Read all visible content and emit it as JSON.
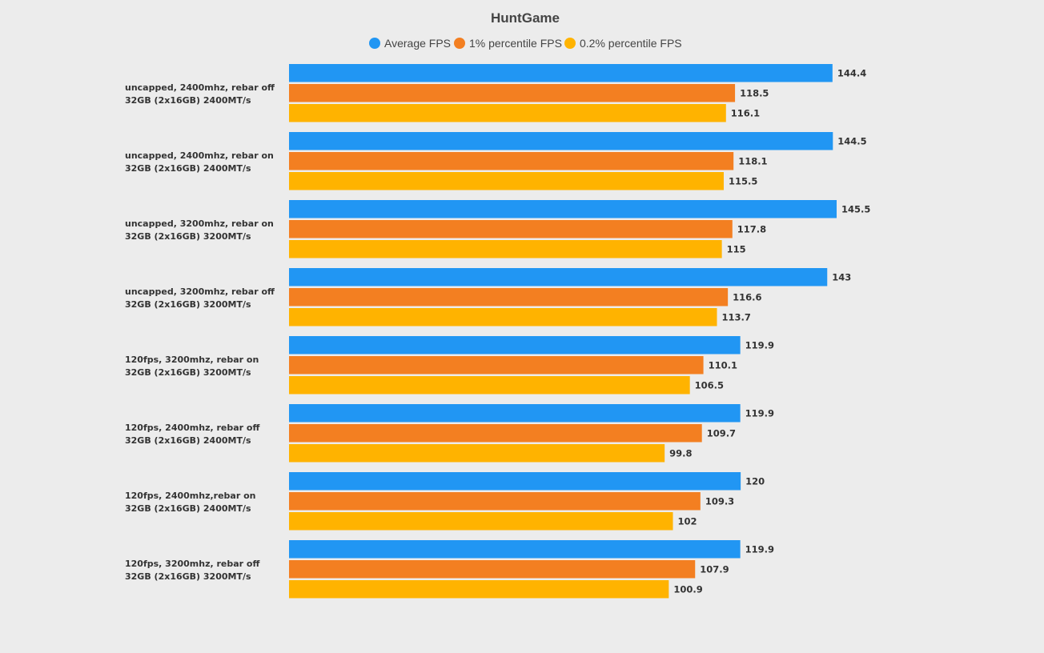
{
  "chart_data": {
    "type": "bar",
    "orientation": "horizontal",
    "title": "HuntGame",
    "xlabel": "",
    "ylabel": "",
    "xlim": [
      0,
      145.5
    ],
    "grid": false,
    "legend_position": "top-center",
    "categories": [
      [
        "uncapped, 2400mhz, rebar off",
        "32GB (2x16GB) 2400MT/s"
      ],
      [
        "uncapped, 2400mhz, rebar on",
        "32GB (2x16GB) 2400MT/s"
      ],
      [
        "uncapped, 3200mhz, rebar on",
        "32GB (2x16GB) 3200MT/s"
      ],
      [
        "uncapped, 3200mhz, rebar off",
        "32GB (2x16GB) 3200MT/s"
      ],
      [
        "120fps, 3200mhz, rebar on",
        "32GB (2x16GB) 3200MT/s"
      ],
      [
        "120fps, 2400mhz, rebar off",
        "32GB (2x16GB) 2400MT/s"
      ],
      [
        "120fps, 2400mhz,rebar on",
        "32GB (2x16GB) 2400MT/s"
      ],
      [
        "120fps, 3200mhz, rebar off",
        "32GB (2x16GB) 3200MT/s"
      ]
    ],
    "series": [
      {
        "name": "Average FPS",
        "color": "#2196f3",
        "values": [
          144.4,
          144.5,
          145.5,
          143,
          119.9,
          119.9,
          120,
          119.9
        ],
        "labels": [
          "144.4",
          "144.5",
          "145.5",
          "143",
          "119.9",
          "119.9",
          "120",
          "119.9"
        ]
      },
      {
        "name": "1% percentile FPS",
        "color": "#f37f21",
        "values": [
          118.5,
          118.1,
          117.8,
          116.6,
          110.1,
          109.7,
          109.3,
          107.9
        ],
        "labels": [
          "118.5",
          "118.1",
          "117.8",
          "116.6",
          "110.1",
          "109.7",
          "109.3",
          "107.9"
        ]
      },
      {
        "name": "0.2% percentile FPS",
        "color": "#ffb300",
        "values": [
          116.1,
          115.5,
          115,
          113.7,
          106.5,
          99.8,
          102,
          100.9
        ],
        "labels": [
          "116.1",
          "115.5",
          "115",
          "113.7",
          "106.5",
          "99.8",
          "102",
          "100.9"
        ]
      }
    ]
  }
}
